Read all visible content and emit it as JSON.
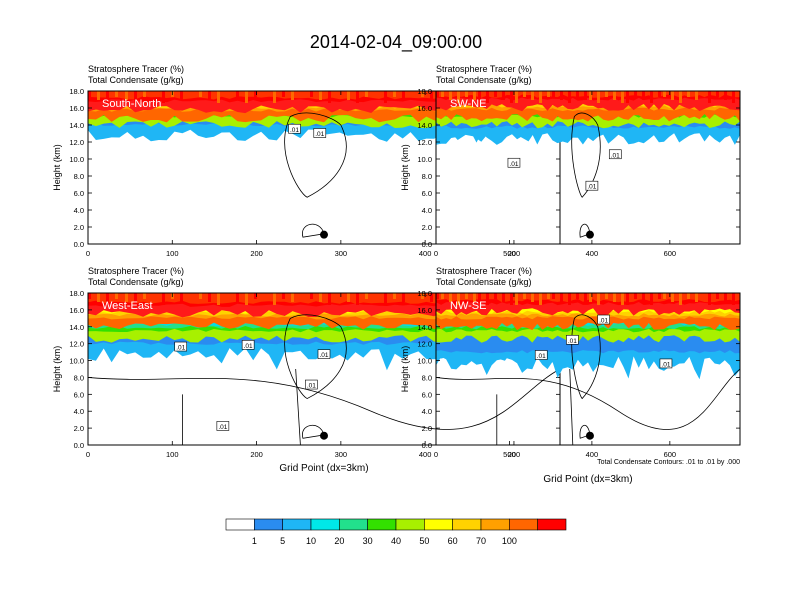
{
  "title": "2014-02-04_09:00:00",
  "var_line1": "Stratosphere Tracer   (%)",
  "var_line2": "Total Condensate   (g/kg)",
  "ylabel": "Height (km)",
  "xlabel": "Grid Point (dx=3km)",
  "contour_note": "Total Condensate Contours: .01 to .01 by .000",
  "contour_label": ".01",
  "colors": {
    "levels": [
      "#ffffff",
      "#2a8cf0",
      "#1fb6f5",
      "#00e0e8",
      "#22e08c",
      "#33e000",
      "#a8f000",
      "#ffff00",
      "#ffd200",
      "#ffa000",
      "#ff6600",
      "#ff2020",
      "#ff0000"
    ],
    "contour": "#000000"
  },
  "chart_data": [
    {
      "type": "heatmap",
      "panel": "South-North",
      "label": "South-North",
      "xlim": [
        0,
        560
      ],
      "ylim": [
        0,
        18
      ],
      "xticks": [
        0,
        100,
        200,
        300,
        400,
        500
      ],
      "yticks": [
        "0.0",
        "2.0",
        "4.0",
        "6.0",
        "8.0",
        "10.0",
        "12.0",
        "14.0",
        "16.0",
        "18.0"
      ],
      "marker_x": 280,
      "tracer_bands_km": [
        {
          "percent_min": 1,
          "base": 13.5
        },
        {
          "percent_min": 20,
          "base": 14.5
        },
        {
          "percent_min": 50,
          "base": 15.2
        },
        {
          "percent_min": 100,
          "base": 16.3
        }
      ]
    },
    {
      "type": "heatmap",
      "panel": "SW-NE",
      "label": "SW-NE",
      "xlim": [
        0,
        780
      ],
      "ylim": [
        0,
        18
      ],
      "xticks": [
        0,
        200,
        400,
        600
      ],
      "yticks": [
        "0.0",
        "2.0",
        "4.0",
        "6.0",
        "8.0",
        "10.0",
        "12.0",
        "14.0",
        "16.0",
        "18.0"
      ],
      "marker_x": 395,
      "tracer_bands_km": [
        {
          "percent_min": 1,
          "base": 13.2
        },
        {
          "percent_min": 20,
          "base": 14.5
        },
        {
          "percent_min": 50,
          "base": 15.3
        },
        {
          "percent_min": 100,
          "base": 16.5
        }
      ]
    },
    {
      "type": "heatmap",
      "panel": "West-East",
      "label": "West-East",
      "xlim": [
        0,
        560
      ],
      "ylim": [
        0,
        18
      ],
      "xticks": [
        0,
        100,
        200,
        300,
        400,
        500
      ],
      "yticks": [
        "0.0",
        "2.0",
        "4.0",
        "6.0",
        "8.0",
        "10.0",
        "12.0",
        "14.0",
        "16.0",
        "18.0"
      ],
      "marker_x": 280,
      "tracer_bands_km": [
        {
          "percent_min": 1,
          "base": 11.5
        },
        {
          "percent_min": 20,
          "base": 13.0
        },
        {
          "percent_min": 50,
          "base": 14.5
        },
        {
          "percent_min": 100,
          "base": 16.0
        }
      ]
    },
    {
      "type": "heatmap",
      "panel": "NW-SE",
      "label": "NW-SE",
      "xlim": [
        0,
        780
      ],
      "ylim": [
        0,
        18
      ],
      "xticks": [
        0,
        200,
        400,
        600
      ],
      "yticks": [
        "0.0",
        "2.0",
        "4.0",
        "6.0",
        "8.0",
        "10.0",
        "12.0",
        "14.0",
        "16.0",
        "18.0"
      ],
      "marker_x": 395,
      "tracer_bands_km": [
        {
          "percent_min": 1,
          "base": 10.5
        },
        {
          "percent_min": 20,
          "base": 13.0
        },
        {
          "percent_min": 50,
          "base": 14.5
        },
        {
          "percent_min": 100,
          "base": 16.2
        }
      ]
    }
  ],
  "colorbar": {
    "labels": [
      "1",
      "5",
      "10",
      "20",
      "30",
      "40",
      "50",
      "60",
      "70",
      "100"
    ],
    "fill_colors": [
      "#ffffff",
      "#2a8cf0",
      "#1fb6f5",
      "#00e8e8",
      "#22e08c",
      "#33e000",
      "#a8f000",
      "#ffff00",
      "#ffd200",
      "#ffa000",
      "#ff6600",
      "#ff0000"
    ]
  }
}
